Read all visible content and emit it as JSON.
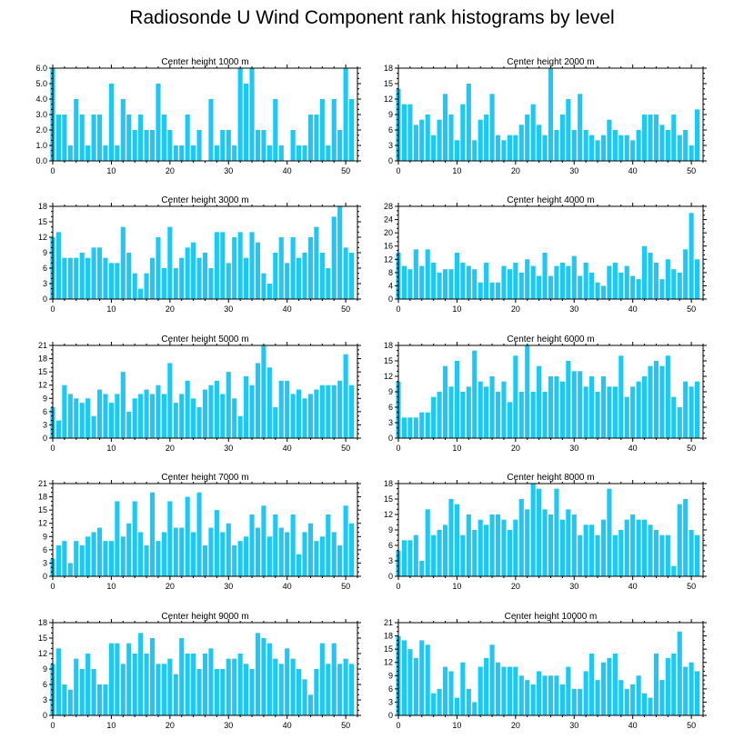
{
  "title": "Radiosonde U Wind Component rank histograms by level",
  "bar_color": "#1ec8f5",
  "chart_data": [
    {
      "type": "bar",
      "title": "Center height 1000 m",
      "xlim": [
        0,
        52
      ],
      "xticks": [
        0,
        10,
        20,
        30,
        40,
        50
      ],
      "ylim": [
        0,
        6
      ],
      "yticks": [
        0,
        1,
        2,
        3,
        4,
        5,
        6
      ],
      "ytick_labels": [
        "0.0",
        "1.0",
        "2.0",
        "3.0",
        "4.0",
        "5.0",
        "6.0"
      ],
      "x": [
        0,
        1,
        2,
        3,
        4,
        5,
        6,
        7,
        8,
        9,
        10,
        11,
        12,
        13,
        14,
        15,
        16,
        17,
        18,
        19,
        20,
        21,
        22,
        23,
        24,
        25,
        26,
        27,
        28,
        29,
        30,
        31,
        32,
        33,
        34,
        35,
        36,
        37,
        38,
        39,
        40,
        41,
        42,
        43,
        44,
        45,
        46,
        47,
        48,
        49,
        50,
        51
      ],
      "values": [
        6,
        3,
        3,
        1,
        4,
        3,
        1,
        3,
        3,
        1,
        5,
        1,
        4,
        3,
        2,
        3,
        2,
        2,
        5,
        3,
        2,
        1,
        1,
        3,
        1,
        2,
        0,
        4,
        1,
        2,
        2,
        1,
        6,
        5,
        6,
        2,
        2,
        1,
        4,
        1,
        0,
        2,
        1,
        1,
        3,
        3,
        4,
        1,
        4,
        2,
        6,
        4
      ]
    },
    {
      "type": "bar",
      "title": "Center height 2000 m",
      "xlim": [
        0,
        52
      ],
      "xticks": [
        0,
        10,
        20,
        30,
        40,
        50
      ],
      "ylim": [
        0,
        18
      ],
      "yticks": [
        0,
        3,
        6,
        9,
        12,
        15,
        18
      ],
      "ytick_labels": [
        "0",
        "3",
        "6",
        "9",
        "12",
        "15",
        "18"
      ],
      "x": [
        0,
        1,
        2,
        3,
        4,
        5,
        6,
        7,
        8,
        9,
        10,
        11,
        12,
        13,
        14,
        15,
        16,
        17,
        18,
        19,
        20,
        21,
        22,
        23,
        24,
        25,
        26,
        27,
        28,
        29,
        30,
        31,
        32,
        33,
        34,
        35,
        36,
        37,
        38,
        39,
        40,
        41,
        42,
        43,
        44,
        45,
        46,
        47,
        48,
        49,
        50,
        51
      ],
      "values": [
        14,
        11,
        11,
        7,
        8,
        9,
        5,
        8,
        13,
        9,
        4,
        11,
        15,
        4,
        8,
        9,
        13,
        5,
        4,
        5,
        5,
        7,
        9,
        11,
        7,
        5,
        18,
        6,
        9,
        12,
        6,
        13,
        6,
        5,
        4,
        5,
        8,
        6,
        5,
        5,
        4,
        6,
        9,
        9,
        9,
        7,
        6,
        9,
        5,
        6,
        3,
        10
      ]
    },
    {
      "type": "bar",
      "title": "Center height 3000 m",
      "xlim": [
        0,
        52
      ],
      "xticks": [
        0,
        10,
        20,
        30,
        40,
        50
      ],
      "ylim": [
        0,
        18
      ],
      "yticks": [
        0,
        3,
        6,
        9,
        12,
        15,
        18
      ],
      "ytick_labels": [
        "0",
        "3",
        "6",
        "9",
        "12",
        "15",
        "18"
      ],
      "x": [
        0,
        1,
        2,
        3,
        4,
        5,
        6,
        7,
        8,
        9,
        10,
        11,
        12,
        13,
        14,
        15,
        16,
        17,
        18,
        19,
        20,
        21,
        22,
        23,
        24,
        25,
        26,
        27,
        28,
        29,
        30,
        31,
        32,
        33,
        34,
        35,
        36,
        37,
        38,
        39,
        40,
        41,
        42,
        43,
        44,
        45,
        46,
        47,
        48,
        49,
        50,
        51
      ],
      "values": [
        12,
        13,
        8,
        8,
        8,
        9,
        8,
        10,
        10,
        8,
        7,
        7,
        14,
        9,
        5,
        2,
        5,
        8,
        12,
        6,
        14,
        6,
        8,
        10,
        11,
        8,
        9,
        6,
        13,
        13,
        7,
        12,
        13,
        8,
        13,
        11,
        5,
        3,
        9,
        12,
        7,
        12,
        8,
        9,
        12,
        14,
        9,
        6,
        16,
        18,
        10,
        9
      ]
    },
    {
      "type": "bar",
      "title": "Center height 4000 m",
      "xlim": [
        0,
        52
      ],
      "xticks": [
        0,
        10,
        20,
        30,
        40,
        50
      ],
      "ylim": [
        0,
        28
      ],
      "yticks": [
        0,
        4,
        8,
        12,
        16,
        20,
        24,
        28
      ],
      "ytick_labels": [
        "0",
        "4",
        "8",
        "12",
        "16",
        "20",
        "24",
        "28"
      ],
      "x": [
        0,
        1,
        2,
        3,
        4,
        5,
        6,
        7,
        8,
        9,
        10,
        11,
        12,
        13,
        14,
        15,
        16,
        17,
        18,
        19,
        20,
        21,
        22,
        23,
        24,
        25,
        26,
        27,
        28,
        29,
        30,
        31,
        32,
        33,
        34,
        35,
        36,
        37,
        38,
        39,
        40,
        41,
        42,
        43,
        44,
        45,
        46,
        47,
        48,
        49,
        50,
        51
      ],
      "values": [
        14,
        10,
        9,
        15,
        10,
        15,
        11,
        8,
        9,
        9,
        14,
        11,
        10,
        9,
        5,
        11,
        5,
        5,
        10,
        9,
        11,
        8,
        12,
        10,
        7,
        14,
        7,
        10,
        11,
        10,
        13,
        7,
        11,
        8,
        5,
        4,
        10,
        11,
        8,
        10,
        7,
        6,
        16,
        14,
        11,
        6,
        12,
        9,
        8,
        15,
        26,
        12
      ]
    },
    {
      "type": "bar",
      "title": "Center height 5000 m",
      "xlim": [
        0,
        52
      ],
      "xticks": [
        0,
        10,
        20,
        30,
        40,
        50
      ],
      "ylim": [
        0,
        21
      ],
      "yticks": [
        0,
        3,
        6,
        9,
        12,
        15,
        18,
        21
      ],
      "ytick_labels": [
        "0",
        "3",
        "6",
        "9",
        "12",
        "15",
        "18",
        "21"
      ],
      "x": [
        0,
        1,
        2,
        3,
        4,
        5,
        6,
        7,
        8,
        9,
        10,
        11,
        12,
        13,
        14,
        15,
        16,
        17,
        18,
        19,
        20,
        21,
        22,
        23,
        24,
        25,
        26,
        27,
        28,
        29,
        30,
        31,
        32,
        33,
        34,
        35,
        36,
        37,
        38,
        39,
        40,
        41,
        42,
        43,
        44,
        45,
        46,
        47,
        48,
        49,
        50,
        51
      ],
      "values": [
        7,
        4,
        12,
        10,
        9,
        8,
        9,
        5,
        11,
        10,
        8,
        10,
        15,
        6,
        9,
        10,
        11,
        10,
        12,
        10,
        17,
        8,
        10,
        13,
        9,
        7,
        11,
        12,
        13,
        10,
        15,
        9,
        5,
        14,
        12,
        17,
        21,
        16,
        7,
        13,
        13,
        10,
        11,
        9,
        10,
        11,
        12,
        12,
        12,
        13,
        19,
        12
      ]
    },
    {
      "type": "bar",
      "title": "Center height 6000 m",
      "xlim": [
        0,
        52
      ],
      "xticks": [
        0,
        10,
        20,
        30,
        40,
        50
      ],
      "ylim": [
        0,
        18
      ],
      "yticks": [
        0,
        3,
        6,
        9,
        12,
        15,
        18
      ],
      "ytick_labels": [
        "0",
        "3",
        "6",
        "9",
        "12",
        "15",
        "18"
      ],
      "x": [
        0,
        1,
        2,
        3,
        4,
        5,
        6,
        7,
        8,
        9,
        10,
        11,
        12,
        13,
        14,
        15,
        16,
        17,
        18,
        19,
        20,
        21,
        22,
        23,
        24,
        25,
        26,
        27,
        28,
        29,
        30,
        31,
        32,
        33,
        34,
        35,
        36,
        37,
        38,
        39,
        40,
        41,
        42,
        43,
        44,
        45,
        46,
        47,
        48,
        49,
        50,
        51
      ],
      "values": [
        11,
        4,
        4,
        4,
        5,
        5,
        8,
        9,
        14,
        10,
        15,
        9,
        10,
        17,
        11,
        10,
        12,
        9,
        11,
        7,
        16,
        9,
        18,
        9,
        14,
        9,
        12,
        12,
        11,
        15,
        13,
        13,
        10,
        12,
        9,
        12,
        10,
        10,
        16,
        8,
        10,
        11,
        12,
        14,
        15,
        14,
        16,
        8,
        6,
        11,
        10,
        11
      ]
    },
    {
      "type": "bar",
      "title": "Center height 7000 m",
      "xlim": [
        0,
        52
      ],
      "xticks": [
        0,
        10,
        20,
        30,
        40,
        50
      ],
      "ylim": [
        0,
        21
      ],
      "yticks": [
        0,
        3,
        6,
        9,
        12,
        15,
        18,
        21
      ],
      "ytick_labels": [
        "0",
        "3",
        "6",
        "9",
        "12",
        "15",
        "18",
        "21"
      ],
      "x": [
        0,
        1,
        2,
        3,
        4,
        5,
        6,
        7,
        8,
        9,
        10,
        11,
        12,
        13,
        14,
        15,
        16,
        17,
        18,
        19,
        20,
        21,
        22,
        23,
        24,
        25,
        26,
        27,
        28,
        29,
        30,
        31,
        32,
        33,
        34,
        35,
        36,
        37,
        38,
        39,
        40,
        41,
        42,
        43,
        44,
        45,
        46,
        47,
        48,
        49,
        50,
        51
      ],
      "values": [
        4,
        7,
        8,
        3,
        8,
        7,
        9,
        10,
        11,
        8,
        8,
        17,
        9,
        12,
        17,
        10,
        7,
        19,
        8,
        10,
        17,
        11,
        11,
        18,
        10,
        19,
        7,
        11,
        15,
        10,
        12,
        7,
        8,
        9,
        14,
        11,
        16,
        9,
        14,
        11,
        10,
        14,
        5,
        10,
        12,
        8,
        9,
        14,
        10,
        7,
        16,
        12
      ]
    },
    {
      "type": "bar",
      "title": "Center height 8000 m",
      "xlim": [
        0,
        52
      ],
      "xticks": [
        0,
        10,
        20,
        30,
        40,
        50
      ],
      "ylim": [
        0,
        18
      ],
      "yticks": [
        0,
        3,
        6,
        9,
        12,
        15,
        18
      ],
      "ytick_labels": [
        "0",
        "3",
        "6",
        "9",
        "12",
        "15",
        "18"
      ],
      "x": [
        0,
        1,
        2,
        3,
        4,
        5,
        6,
        7,
        8,
        9,
        10,
        11,
        12,
        13,
        14,
        15,
        16,
        17,
        18,
        19,
        20,
        21,
        22,
        23,
        24,
        25,
        26,
        27,
        28,
        29,
        30,
        31,
        32,
        33,
        34,
        35,
        36,
        37,
        38,
        39,
        40,
        41,
        42,
        43,
        44,
        45,
        46,
        47,
        48,
        49,
        50,
        51
      ],
      "values": [
        5,
        7,
        7,
        8,
        3,
        13,
        8,
        9,
        10,
        15,
        14,
        8,
        12,
        9,
        11,
        10,
        12,
        12,
        11,
        9,
        11,
        15,
        13,
        18,
        17,
        13,
        12,
        17,
        11,
        13,
        12,
        8,
        10,
        10,
        8,
        11,
        17,
        8,
        9,
        11,
        12,
        11,
        11,
        10,
        9,
        8,
        8,
        2,
        14,
        15,
        9,
        8
      ]
    },
    {
      "type": "bar",
      "title": "Center height 9000 m",
      "xlim": [
        0,
        52
      ],
      "xticks": [
        0,
        10,
        20,
        30,
        40,
        50
      ],
      "ylim": [
        0,
        18
      ],
      "yticks": [
        0,
        3,
        6,
        9,
        12,
        15,
        18
      ],
      "ytick_labels": [
        "0",
        "3",
        "6",
        "9",
        "12",
        "15",
        "18"
      ],
      "x": [
        0,
        1,
        2,
        3,
        4,
        5,
        6,
        7,
        8,
        9,
        10,
        11,
        12,
        13,
        14,
        15,
        16,
        17,
        18,
        19,
        20,
        21,
        22,
        23,
        24,
        25,
        26,
        27,
        28,
        29,
        30,
        31,
        32,
        33,
        34,
        35,
        36,
        37,
        38,
        39,
        40,
        41,
        42,
        43,
        44,
        45,
        46,
        47,
        48,
        49,
        50,
        51
      ],
      "values": [
        10,
        13,
        6,
        5,
        11,
        9,
        12,
        9,
        6,
        6,
        14,
        14,
        10,
        14,
        12,
        16,
        12,
        15,
        10,
        10,
        11,
        8,
        15,
        12,
        12,
        9,
        12,
        13,
        9,
        9,
        11,
        11,
        12,
        10,
        9,
        16,
        15,
        14,
        11,
        10,
        13,
        11,
        9,
        7,
        4,
        9,
        14,
        10,
        14,
        10,
        11,
        10
      ]
    },
    {
      "type": "bar",
      "title": "Center height 10000 m",
      "xlim": [
        0,
        52
      ],
      "xticks": [
        0,
        10,
        20,
        30,
        40,
        50
      ],
      "ylim": [
        0,
        21
      ],
      "yticks": [
        0,
        3,
        6,
        9,
        12,
        15,
        18,
        21
      ],
      "ytick_labels": [
        "0",
        "3",
        "6",
        "9",
        "12",
        "15",
        "18",
        "21"
      ],
      "x": [
        0,
        1,
        2,
        3,
        4,
        5,
        6,
        7,
        8,
        9,
        10,
        11,
        12,
        13,
        14,
        15,
        16,
        17,
        18,
        19,
        20,
        21,
        22,
        23,
        24,
        25,
        26,
        27,
        28,
        29,
        30,
        31,
        32,
        33,
        34,
        35,
        36,
        37,
        38,
        39,
        40,
        41,
        42,
        43,
        44,
        45,
        46,
        47,
        48,
        49,
        50,
        51
      ],
      "values": [
        18,
        17,
        15,
        13,
        17,
        16,
        5,
        6,
        11,
        10,
        4,
        12,
        6,
        3,
        11,
        13,
        16,
        12,
        11,
        11,
        11,
        9,
        8,
        7,
        10,
        9,
        9,
        9,
        7,
        11,
        6,
        6,
        10,
        14,
        8,
        12,
        13,
        14,
        8,
        6,
        7,
        9,
        5,
        4,
        14,
        8,
        13,
        14,
        19,
        11,
        12,
        10
      ]
    }
  ]
}
